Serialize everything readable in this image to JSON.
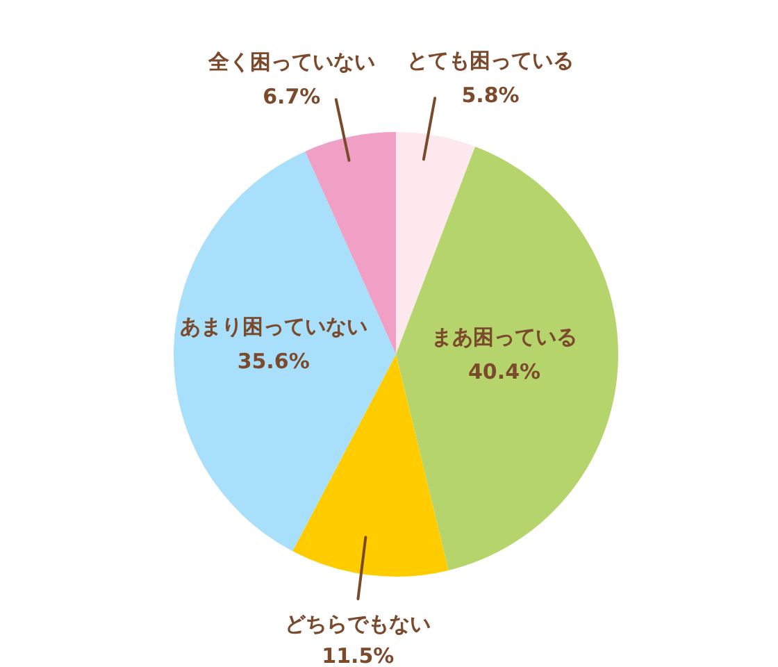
{
  "chart_data": {
    "type": "pie",
    "categories": [
      "とても困っている",
      "まあ困っている",
      "どちらでもない",
      "あまり困っていない",
      "全く困っていない"
    ],
    "values": [
      5.8,
      40.4,
      11.5,
      35.6,
      6.7
    ],
    "value_labels": [
      "5.8%",
      "40.4%",
      "11.5%",
      "35.6%",
      "6.7%"
    ],
    "colors": [
      "#fde8ee",
      "#b5d46b",
      "#ffcc00",
      "#a8e0fc",
      "#f0a0c4"
    ]
  }
}
